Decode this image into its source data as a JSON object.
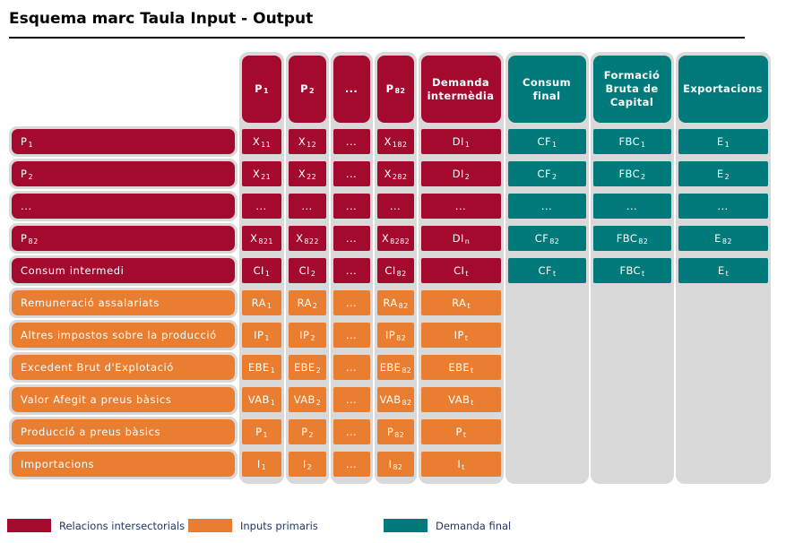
{
  "title": "Esquema marc Taula Input - Output",
  "colors": {
    "intersectorial": "#A40A2E",
    "primary_inputs": "#E97E30",
    "final_demand": "#007A7B",
    "lane": "#D9D9D9",
    "legend_text": "#1F3864"
  },
  "columns": [
    {
      "base": "P",
      "sub": "1",
      "group": "intersectorial"
    },
    {
      "base": "P",
      "sub": "2",
      "group": "intersectorial"
    },
    {
      "base": "...",
      "sub": "",
      "group": "intersectorial"
    },
    {
      "base": "P",
      "sub": "82",
      "group": "intersectorial"
    },
    {
      "base": "Demanda intermèdia",
      "sub": "",
      "group": "intersectorial"
    },
    {
      "base": "Consum final",
      "sub": "",
      "group": "final_demand"
    },
    {
      "base": "Formació Bruta de Capital",
      "sub": "",
      "group": "final_demand"
    },
    {
      "base": "Exportacions",
      "sub": "",
      "group": "final_demand"
    }
  ],
  "rows": [
    {
      "header": {
        "base": "P",
        "sub": "1"
      },
      "group": "intersectorial",
      "cells": [
        [
          "X",
          "11"
        ],
        [
          "X",
          "12"
        ],
        [
          "...",
          ""
        ],
        [
          "X",
          "182"
        ],
        [
          "DI",
          "1"
        ],
        [
          "CF",
          "1"
        ],
        [
          "FBC",
          "1"
        ],
        [
          "E",
          "1"
        ]
      ]
    },
    {
      "header": {
        "base": "P",
        "sub": "2"
      },
      "group": "intersectorial",
      "cells": [
        [
          "X",
          "21"
        ],
        [
          "X",
          "22"
        ],
        [
          "...",
          ""
        ],
        [
          "X",
          "282"
        ],
        [
          "DI",
          "2"
        ],
        [
          "CF",
          "2"
        ],
        [
          "FBC",
          "2"
        ],
        [
          "E",
          "2"
        ]
      ]
    },
    {
      "header": {
        "base": "...",
        "sub": ""
      },
      "group": "intersectorial",
      "cells": [
        [
          "...",
          ""
        ],
        [
          "...",
          ""
        ],
        [
          "...",
          ""
        ],
        [
          "...",
          ""
        ],
        [
          "...",
          ""
        ],
        [
          "...",
          ""
        ],
        [
          "...",
          ""
        ],
        [
          "...",
          ""
        ]
      ]
    },
    {
      "header": {
        "base": "P",
        "sub": "82"
      },
      "group": "intersectorial",
      "cells": [
        [
          "X",
          "821"
        ],
        [
          "X",
          "822"
        ],
        [
          "...",
          ""
        ],
        [
          "X",
          "8282"
        ],
        [
          "DI",
          "n"
        ],
        [
          "CF",
          "82"
        ],
        [
          "FBC",
          "82"
        ],
        [
          "E",
          "82"
        ]
      ]
    },
    {
      "header": {
        "base": "Consum intermedi",
        "sub": ""
      },
      "group": "intersectorial",
      "cells": [
        [
          "CI",
          "1"
        ],
        [
          "CI",
          "2"
        ],
        [
          "...",
          ""
        ],
        [
          "CI",
          "82"
        ],
        [
          "CI",
          "t"
        ],
        [
          "CF",
          "t"
        ],
        [
          "FBC",
          "t"
        ],
        [
          "E",
          "t"
        ]
      ]
    },
    {
      "header": {
        "base": "Remuneració assalariats",
        "sub": ""
      },
      "group": "primary_inputs",
      "cells": [
        [
          "RA",
          "1"
        ],
        [
          "RA",
          "2"
        ],
        [
          "...",
          ""
        ],
        [
          "RA",
          "82"
        ],
        [
          "RA",
          "t"
        ]
      ]
    },
    {
      "header": {
        "base": "Altres impostos sobre la producció",
        "sub": ""
      },
      "group": "primary_inputs",
      "cells": [
        [
          "IP",
          "1"
        ],
        [
          "IP",
          "2"
        ],
        [
          "...",
          ""
        ],
        [
          "IP",
          "82"
        ],
        [
          "IP",
          "t"
        ]
      ]
    },
    {
      "header": {
        "base": "Excedent Brut d'Explotació",
        "sub": ""
      },
      "group": "primary_inputs",
      "cells": [
        [
          "EBE",
          "1"
        ],
        [
          "EBE",
          "2"
        ],
        [
          "...",
          ""
        ],
        [
          "EBE",
          "82"
        ],
        [
          "EBE",
          "t"
        ]
      ]
    },
    {
      "header": {
        "base": "Valor Afegit a preus bàsics",
        "sub": ""
      },
      "group": "primary_inputs",
      "cells": [
        [
          "VAB",
          "1"
        ],
        [
          "VAB",
          "2"
        ],
        [
          "...",
          ""
        ],
        [
          "VAB",
          "82"
        ],
        [
          "VAB",
          "t"
        ]
      ]
    },
    {
      "header": {
        "base": "Producció a preus bàsics",
        "sub": ""
      },
      "group": "primary_inputs",
      "cells": [
        [
          "P",
          "1"
        ],
        [
          "P",
          "2"
        ],
        [
          "...",
          ""
        ],
        [
          "P",
          "82"
        ],
        [
          "P",
          "t"
        ]
      ]
    },
    {
      "header": {
        "base": "Importacions",
        "sub": ""
      },
      "group": "primary_inputs",
      "cells": [
        [
          "I",
          "1"
        ],
        [
          "I",
          "2"
        ],
        [
          "...",
          ""
        ],
        [
          "I",
          "82"
        ],
        [
          "I",
          "t"
        ]
      ]
    }
  ],
  "legend": [
    {
      "label": "Relacions intersectorials",
      "group": "intersectorial"
    },
    {
      "label": "Inputs primaris",
      "group": "primary_inputs"
    },
    {
      "label": "Demanda final",
      "group": "final_demand"
    }
  ]
}
